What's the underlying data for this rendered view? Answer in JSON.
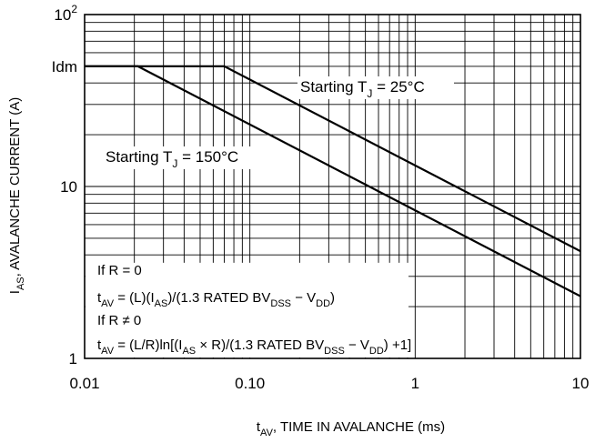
{
  "chart_data": {
    "type": "line",
    "title": "",
    "xlabel": {
      "base": "t",
      "sub": "AV",
      "rest": ", TIME IN AVALANCHE (ms)"
    },
    "ylabel": {
      "base": "I",
      "sub": "AS",
      "rest": ", AVALANCHE CURRENT (A)"
    },
    "x_scale": "log",
    "y_scale": "log",
    "xlim": [
      0.01,
      10
    ],
    "ylim": [
      1,
      100
    ],
    "grid": true,
    "x_ticks": [
      {
        "value": 0.01,
        "label": "0.01"
      },
      {
        "value": 0.1,
        "label": "0.10"
      },
      {
        "value": 1,
        "label": "1"
      },
      {
        "value": 10,
        "label": "10"
      }
    ],
    "y_ticks": [
      {
        "value": 1,
        "label": "1"
      },
      {
        "value": 10,
        "label": "10"
      },
      {
        "value": 100,
        "label": "10",
        "sup": "2"
      }
    ],
    "y_marker": {
      "value": 50,
      "label": "Idm"
    },
    "series": [
      {
        "label": {
          "pre": "Starting T",
          "sub": "J",
          "post": " = 25°C"
        },
        "x": [
          0.01,
          0.07,
          10
        ],
        "y": [
          50,
          50,
          4.2
        ]
      },
      {
        "label": {
          "pre": "Starting T",
          "sub": "J",
          "post": " = 150°C"
        },
        "x": [
          0.01,
          0.021,
          10
        ],
        "y": [
          50,
          50,
          2.3
        ]
      }
    ],
    "annotations": [
      [
        {
          "t": "If R = 0"
        }
      ],
      [
        {
          "t": "t"
        },
        {
          "t": "AV",
          "sub": true
        },
        {
          "t": " = (L)(I"
        },
        {
          "t": "AS",
          "sub": true
        },
        {
          "t": ")/(1.3 RATED BV"
        },
        {
          "t": "DSS",
          "sub": true
        },
        {
          "t": " − V"
        },
        {
          "t": "DD",
          "sub": true
        },
        {
          "t": ")"
        }
      ],
      [
        {
          "t": "If R ≠ 0"
        }
      ],
      [
        {
          "t": "t"
        },
        {
          "t": "AV",
          "sub": true
        },
        {
          "t": " = (L/R)ln[(I"
        },
        {
          "t": "AS",
          "sub": true
        },
        {
          "t": " × R)/(1.3 RATED BV"
        },
        {
          "t": "DSS",
          "sub": true
        },
        {
          "t": " − V"
        },
        {
          "t": "DD",
          "sub": true
        },
        {
          "t": ") +1]"
        }
      ]
    ]
  }
}
